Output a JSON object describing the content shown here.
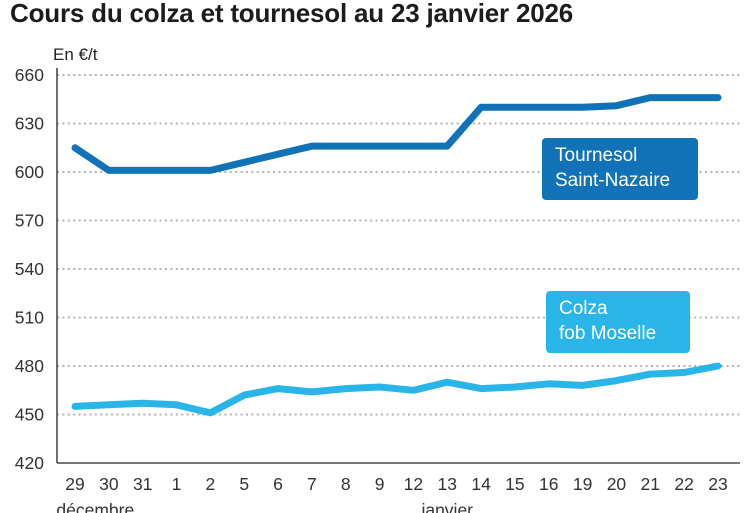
{
  "page": {
    "title": "Cours du colza et tournesol au 23 janvier 2026"
  },
  "chart": {
    "unit_label": "En €/t",
    "legend": [
      {
        "line1": "Tournesol",
        "line2": "Saint-Nazaire",
        "color": "#1272b8"
      },
      {
        "line1": "Colza",
        "line2": "fob Moselle",
        "color": "#29b5e8"
      }
    ]
  },
  "chart_data": {
    "type": "line",
    "title": "Cours du colza et tournesol au 23 janvier 2026",
    "xlabel": "",
    "ylabel": "En €/t",
    "ylim": [
      420,
      660
    ],
    "yticks": [
      420,
      450,
      480,
      510,
      540,
      570,
      600,
      630,
      660
    ],
    "grid": "horizontal-dotted",
    "legend_position": "inside-right-boxes",
    "categories": [
      "29",
      "30",
      "31",
      "1",
      "2",
      "5",
      "6",
      "7",
      "8",
      "9",
      "12",
      "13",
      "14",
      "15",
      "16",
      "19",
      "20",
      "21",
      "22",
      "23"
    ],
    "month_labels": [
      {
        "label": "décembre",
        "center_index": 0.6
      },
      {
        "label": "janvier",
        "center_index": 11
      }
    ],
    "series": [
      {
        "name": "Tournesol Saint-Nazaire",
        "color": "#1272b8",
        "values": [
          615,
          601,
          601,
          601,
          601,
          606,
          611,
          616,
          616,
          616,
          616,
          616,
          640,
          640,
          640,
          640,
          641,
          646,
          646,
          646
        ]
      },
      {
        "name": "Colza fob Moselle",
        "color": "#29b5e8",
        "values": [
          455,
          456,
          457,
          456,
          451,
          462,
          466,
          464,
          466,
          467,
          465,
          470,
          466,
          467,
          469,
          468,
          471,
          475,
          476,
          480
        ]
      }
    ]
  }
}
